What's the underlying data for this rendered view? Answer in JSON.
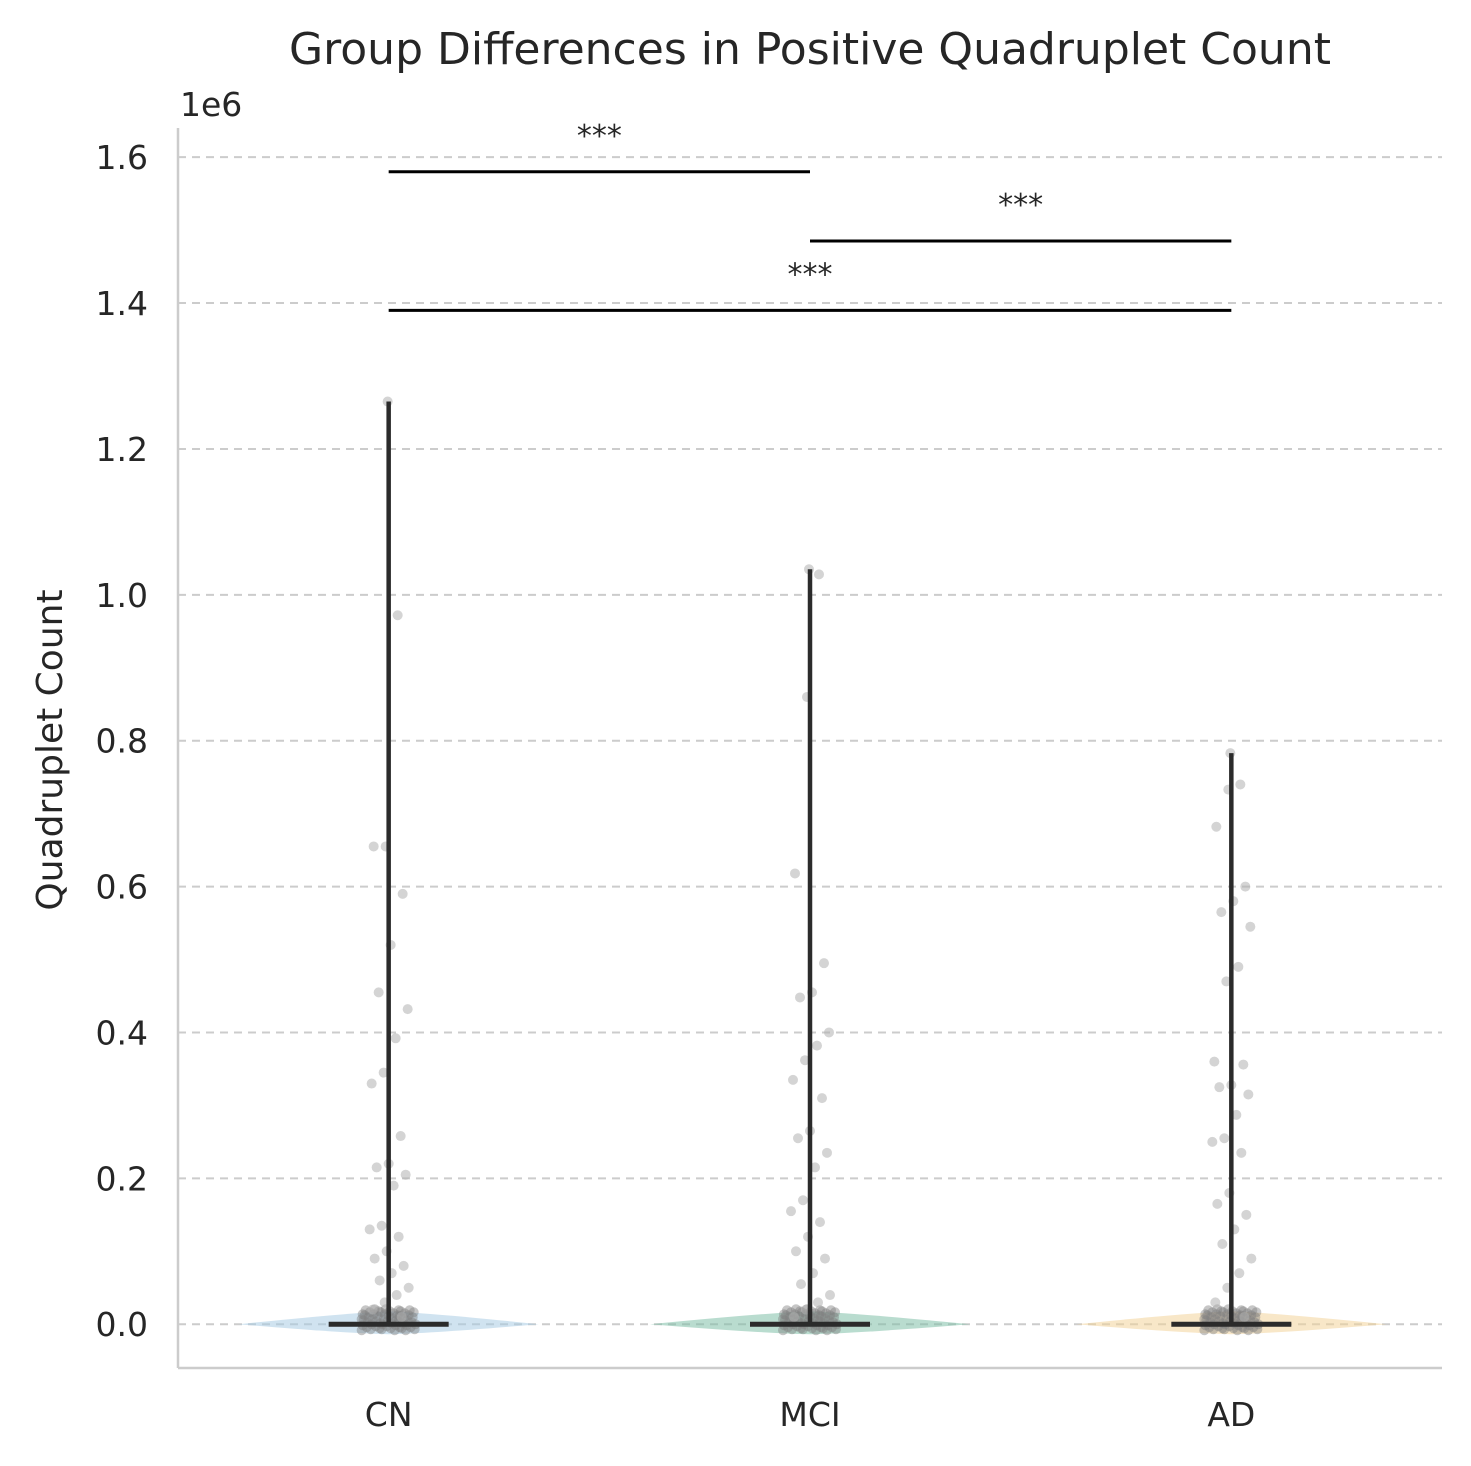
{
  "chart_data": {
    "type": "violin",
    "title": "Group Differences in Positive Quadruplet Count",
    "xlabel": "",
    "ylabel": "Quadruplet Count",
    "y_offset_label": "1e6",
    "ylim": [
      -0.06,
      1.64
    ],
    "yticks": [
      0.0,
      0.2,
      0.4,
      0.6,
      0.8,
      1.0,
      1.2,
      1.4,
      1.6
    ],
    "ytick_labels": [
      "0.0",
      "0.2",
      "0.4",
      "0.6",
      "0.8",
      "1.0",
      "1.2",
      "1.4",
      "1.6"
    ],
    "grid": "horizontal dashed",
    "categories": [
      "CN",
      "MCI",
      "AD"
    ],
    "colors": {
      "CN": "#a9cce3",
      "MCI": "#7fbfa8",
      "AD": "#f2d39b"
    },
    "groups": [
      {
        "name": "CN",
        "whisker": [
          0.0,
          1.265
        ],
        "outlier_points": [
          1.265,
          0.972,
          0.655,
          0.655,
          0.59,
          0.52,
          0.455,
          0.432,
          0.392,
          0.345,
          0.33,
          0.258,
          0.22,
          0.215,
          0.205,
          0.19,
          0.135,
          0.13,
          0.12,
          0.1,
          0.09,
          0.08,
          0.07,
          0.06,
          0.05,
          0.04,
          0.03,
          0.02,
          0.01
        ]
      },
      {
        "name": "MCI",
        "whisker": [
          0.0,
          1.035
        ],
        "outlier_points": [
          1.035,
          1.028,
          0.86,
          0.618,
          0.495,
          0.455,
          0.448,
          0.4,
          0.382,
          0.362,
          0.335,
          0.31,
          0.265,
          0.255,
          0.235,
          0.215,
          0.17,
          0.155,
          0.14,
          0.12,
          0.1,
          0.09,
          0.07,
          0.055,
          0.04,
          0.03,
          0.02,
          0.01
        ]
      },
      {
        "name": "AD",
        "whisker": [
          0.0,
          0.783
        ],
        "outlier_points": [
          0.783,
          0.74,
          0.733,
          0.682,
          0.6,
          0.58,
          0.565,
          0.545,
          0.49,
          0.47,
          0.36,
          0.356,
          0.328,
          0.325,
          0.315,
          0.287,
          0.255,
          0.25,
          0.235,
          0.18,
          0.165,
          0.15,
          0.13,
          0.11,
          0.09,
          0.07,
          0.05,
          0.03,
          0.01
        ]
      }
    ],
    "significance": [
      {
        "pair": [
          "CN",
          "MCI"
        ],
        "y": 1.58,
        "label": "***"
      },
      {
        "pair": [
          "MCI",
          "AD"
        ],
        "y": 1.485,
        "label": "***"
      },
      {
        "pair": [
          "CN",
          "AD"
        ],
        "y": 1.39,
        "label": "***"
      }
    ]
  }
}
